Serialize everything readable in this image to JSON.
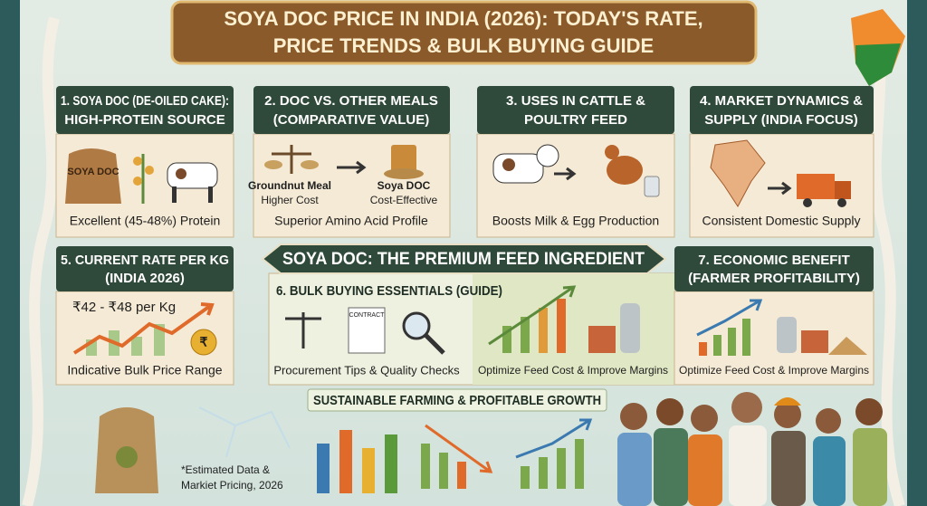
{
  "header": {
    "title_lines": [
      "SOYA DOC PRICE IN INDIA (2026): TODAY'S RATE,",
      "PRICE TRENDS & BULK BUYING GUIDE"
    ]
  },
  "panels": [
    {
      "heading_lines": [
        "1. SOYA DOC (DE-OILED CAKE):",
        "HIGH-PROTEIN SOURCE"
      ],
      "labels": [
        "SOYA DOC"
      ],
      "captions": [
        "Excellent (45-48%) Protein"
      ]
    },
    {
      "heading_lines": [
        "2. DOC VS. OTHER MEALS",
        "(COMPARATIVE VALUE)"
      ],
      "labels": [
        "Groundnut Meal",
        "Higher Cost",
        "Soya DOC",
        "Cost-Effective"
      ],
      "captions": [
        "Superior Amino Acid Profile"
      ]
    },
    {
      "heading_lines": [
        "3. USES IN CATTLE &",
        "POULTRY FEED"
      ],
      "labels": [],
      "captions": [
        "Boosts Milk & Egg Production"
      ]
    },
    {
      "heading_lines": [
        "4. MARKET DYNAMICS &",
        "SUPPLY (INDIA FOCUS)"
      ],
      "labels": [],
      "captions": [
        "Consistent Domestic Supply"
      ]
    },
    {
      "heading_lines": [
        "5. CURRENT RATE PER KG",
        "(INDIA 2026)"
      ],
      "labels": [
        "₹42 - ₹48 per Kg",
        "₹"
      ],
      "captions": [
        "Indicative Bulk Price Range"
      ]
    },
    {
      "heading_lines": [
        "6. BULK BUYING ESSENTIALS (GUIDE)"
      ],
      "labels": [
        "CONTRACT"
      ],
      "captions": [
        "Procurement Tips & Quality Checks",
        "Optimize Feed Cost & Improve Margins"
      ]
    },
    {
      "heading_lines": [
        "7. ECONOMIC BENEFIT",
        "(FARMER PROFITABILITY)"
      ],
      "labels": [],
      "captions": [
        "Optimize Feed Cost & Improve Margins"
      ]
    }
  ],
  "banner": "SOYA DOC: THE PREMIUM FEED INGREDIENT",
  "bottom": {
    "title": "SUSTAINABLE FARMING & PROFITABLE GROWTH",
    "footnote_lines": [
      "*Estimated Data &",
      "Markiet Pricing, 2026"
    ]
  }
}
